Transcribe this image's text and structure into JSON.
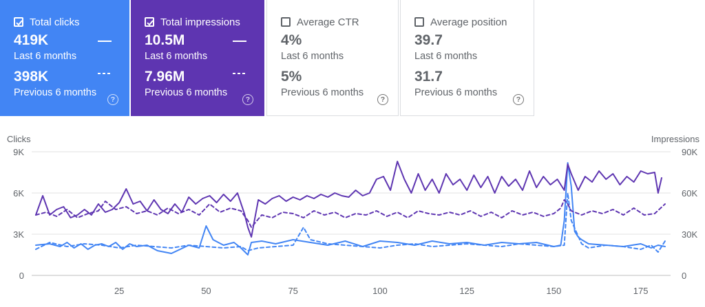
{
  "cards": [
    {
      "title": "Total clicks",
      "checked": true,
      "current_value": "419K",
      "current_period": "Last 6 months",
      "previous_value": "398K",
      "previous_period": "Previous 6 months",
      "bg": "#4285f4",
      "fg": "#ffffff",
      "help_icon": "help-circle-icon"
    },
    {
      "title": "Total impressions",
      "checked": true,
      "current_value": "10.5M",
      "current_period": "Last 6 months",
      "previous_value": "7.96M",
      "previous_period": "Previous 6 months",
      "bg": "#5e35b1",
      "fg": "#ffffff",
      "help_icon": "help-circle-icon"
    },
    {
      "title": "Average CTR",
      "checked": false,
      "current_value": "4%",
      "current_period": "Last 6 months",
      "previous_value": "5%",
      "previous_period": "Previous 6 months",
      "bg": "#ffffff",
      "fg": "#5f6368",
      "help_icon": "help-circle-icon"
    },
    {
      "title": "Average position",
      "checked": false,
      "current_value": "39.7",
      "current_period": "Last 6 months",
      "previous_value": "31.7",
      "previous_period": "Previous 6 months",
      "bg": "#ffffff",
      "fg": "#5f6368",
      "help_icon": "help-circle-icon"
    }
  ],
  "help_glyph": "?",
  "chart_data": {
    "type": "line",
    "xlabel": "",
    "ylabel_left": "Clicks",
    "ylabel_right": "Impressions",
    "x_range": [
      1,
      182
    ],
    "xticks": [
      25,
      50,
      75,
      100,
      125,
      150,
      175
    ],
    "yticks_left": [
      0,
      3000,
      6000,
      9000
    ],
    "ytick_labels_left": [
      "0",
      "3K",
      "6K",
      "9K"
    ],
    "ylim_left": [
      0,
      9000
    ],
    "yticks_right": [
      0,
      30000,
      60000,
      90000
    ],
    "ytick_labels_right": [
      "0",
      "30K",
      "60K",
      "90K"
    ],
    "ylim_right": [
      0,
      90000
    ],
    "grid": true,
    "colors": {
      "clicks": "#4285f4",
      "impressions": "#5e35b1"
    },
    "series": [
      {
        "metric": "clicks",
        "period": "current",
        "axis": "left",
        "style": "solid",
        "x": [
          1,
          5,
          8,
          10,
          12,
          14,
          16,
          18,
          20,
          22,
          24,
          26,
          28,
          30,
          33,
          36,
          40,
          45,
          48,
          50,
          52,
          55,
          58,
          60,
          62,
          63,
          66,
          70,
          75,
          80,
          85,
          90,
          95,
          100,
          105,
          110,
          115,
          120,
          125,
          130,
          135,
          140,
          145,
          150,
          152,
          153,
          154,
          155,
          156,
          157,
          158,
          160,
          165,
          170,
          175,
          178,
          180,
          182
        ],
        "y": [
          2200,
          2300,
          2100,
          2400,
          2000,
          2300,
          1900,
          2200,
          2300,
          2100,
          2400,
          1900,
          2300,
          2100,
          2200,
          1800,
          1600,
          2200,
          2000,
          3600,
          2600,
          2200,
          2400,
          2000,
          1500,
          2400,
          2500,
          2300,
          2600,
          2400,
          2200,
          2500,
          2100,
          2500,
          2400,
          2200,
          2500,
          2300,
          2400,
          2200,
          2400,
          2300,
          2400,
          2100,
          2200,
          4000,
          8200,
          6500,
          3200,
          2800,
          2600,
          2300,
          2200,
          2100,
          2300,
          2000,
          2200,
          2100
        ]
      },
      {
        "metric": "clicks",
        "period": "previous",
        "axis": "left",
        "style": "dashed",
        "x": [
          1,
          5,
          10,
          15,
          20,
          25,
          30,
          35,
          40,
          45,
          50,
          55,
          60,
          62,
          65,
          70,
          75,
          78,
          80,
          85,
          90,
          95,
          100,
          105,
          110,
          115,
          120,
          125,
          130,
          135,
          140,
          145,
          150,
          153,
          154,
          155,
          158,
          160,
          165,
          170,
          175,
          178,
          180,
          182
        ],
        "y": [
          1900,
          2400,
          2100,
          2300,
          2200,
          2000,
          2200,
          2100,
          2000,
          2200,
          2100,
          2000,
          2100,
          1800,
          2000,
          2100,
          2200,
          3500,
          2600,
          2300,
          2200,
          2100,
          2000,
          2200,
          2300,
          2100,
          2200,
          2300,
          2200,
          2100,
          2300,
          2200,
          2100,
          2200,
          6000,
          4000,
          2300,
          2000,
          2200,
          2100,
          1900,
          2200,
          1700,
          2500
        ]
      },
      {
        "metric": "impressions",
        "period": "current",
        "axis": "right",
        "style": "solid",
        "x": [
          1,
          3,
          5,
          7,
          9,
          11,
          13,
          15,
          17,
          19,
          21,
          23,
          25,
          27,
          29,
          31,
          33,
          35,
          37,
          39,
          41,
          43,
          45,
          47,
          49,
          51,
          53,
          55,
          57,
          59,
          61,
          62,
          63,
          65,
          67,
          69,
          71,
          73,
          75,
          77,
          79,
          81,
          83,
          85,
          87,
          89,
          91,
          93,
          95,
          97,
          99,
          101,
          103,
          105,
          107,
          109,
          111,
          113,
          115,
          117,
          119,
          121,
          123,
          125,
          127,
          129,
          131,
          133,
          135,
          137,
          139,
          141,
          143,
          145,
          147,
          149,
          151,
          153,
          154,
          155,
          157,
          159,
          161,
          163,
          165,
          167,
          169,
          171,
          173,
          175,
          177,
          179,
          180,
          181
        ],
        "y": [
          44000,
          58000,
          44000,
          48000,
          50000,
          42000,
          44000,
          48000,
          44000,
          52000,
          46000,
          48000,
          53000,
          63000,
          52000,
          54000,
          47000,
          55000,
          48000,
          45000,
          52000,
          46000,
          57000,
          52000,
          56000,
          58000,
          53000,
          59000,
          54000,
          60000,
          45000,
          35000,
          28000,
          55000,
          52000,
          56000,
          58000,
          54000,
          57000,
          55000,
          58000,
          56000,
          59000,
          57000,
          60000,
          58000,
          57000,
          62000,
          58000,
          60000,
          70000,
          72000,
          62000,
          83000,
          70000,
          60000,
          74000,
          62000,
          70000,
          60000,
          74000,
          66000,
          70000,
          62000,
          73000,
          64000,
          72000,
          60000,
          72000,
          65000,
          70000,
          62000,
          76000,
          64000,
          72000,
          66000,
          70000,
          62000,
          81000,
          74000,
          62000,
          72000,
          68000,
          76000,
          70000,
          74000,
          66000,
          72000,
          68000,
          76000,
          74000,
          75000,
          60000,
          71000
        ]
      },
      {
        "metric": "impressions",
        "period": "previous",
        "axis": "right",
        "style": "dashed",
        "x": [
          1,
          4,
          7,
          10,
          13,
          16,
          19,
          21,
          24,
          27,
          30,
          33,
          36,
          39,
          42,
          45,
          48,
          51,
          54,
          57,
          60,
          62,
          63,
          66,
          69,
          72,
          75,
          78,
          81,
          84,
          87,
          90,
          93,
          96,
          99,
          102,
          105,
          108,
          111,
          114,
          117,
          120,
          123,
          126,
          129,
          132,
          135,
          138,
          141,
          144,
          147,
          150,
          152,
          153,
          154,
          155,
          158,
          161,
          164,
          167,
          170,
          173,
          176,
          179,
          182
        ],
        "y": [
          44000,
          46000,
          43000,
          48000,
          42000,
          45000,
          47000,
          54000,
          48000,
          50000,
          45000,
          47000,
          44000,
          49000,
          45000,
          48000,
          44000,
          52000,
          46000,
          49000,
          47000,
          40000,
          35000,
          44000,
          42000,
          46000,
          45000,
          42000,
          47000,
          44000,
          46000,
          42000,
          45000,
          44000,
          47000,
          43000,
          46000,
          42000,
          47000,
          45000,
          44000,
          46000,
          44000,
          47000,
          43000,
          46000,
          42000,
          47000,
          44000,
          46000,
          43000,
          45000,
          49000,
          55000,
          52000,
          47000,
          44000,
          47000,
          45000,
          48000,
          44000,
          49000,
          44000,
          45000,
          52000
        ]
      }
    ]
  }
}
